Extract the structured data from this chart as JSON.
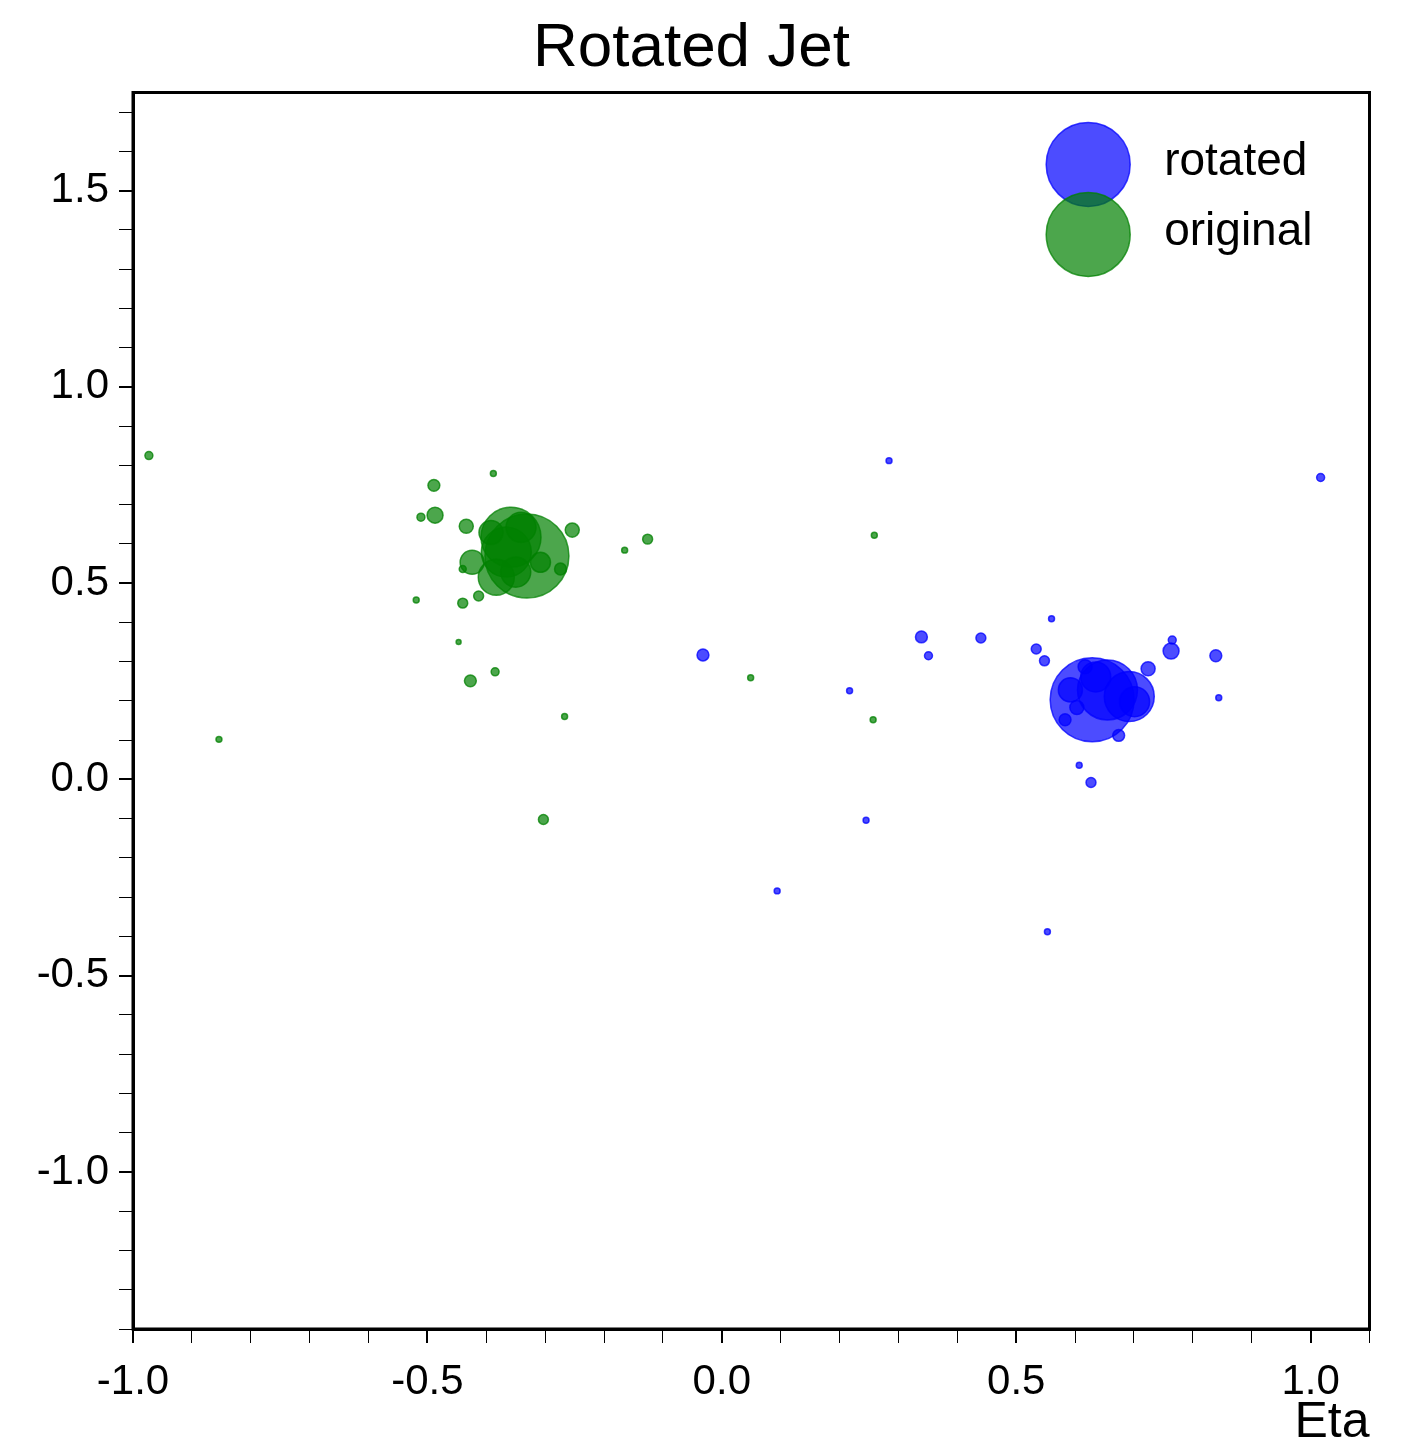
{
  "chart_data": {
    "type": "bubble",
    "title": "Rotated Jet",
    "xlabel": "Eta",
    "xlim": [
      -1.0,
      1.1
    ],
    "ylim": [
      -1.4,
      1.75
    ],
    "xticks": [
      {
        "value": -1,
        "label": "-1.0"
      },
      {
        "value": -0.9,
        "label": null
      },
      {
        "value": -0.8,
        "label": null
      },
      {
        "value": -0.7,
        "label": null
      },
      {
        "value": -0.6,
        "label": null
      },
      -0.5,
      {
        "value": -0.4,
        "label": null
      },
      {
        "value": -0.3,
        "label": null
      },
      {
        "value": -0.2,
        "label": null
      },
      {
        "value": -0.1,
        "label": null
      },
      {
        "value": 0,
        "label": "0.0"
      },
      {
        "value": 0.1,
        "label": null
      },
      {
        "value": 0.2,
        "label": null
      },
      {
        "value": 0.3,
        "label": null
      },
      {
        "value": 0.4,
        "label": null
      },
      0.5,
      {
        "value": 0.6,
        "label": null
      },
      {
        "value": 0.7,
        "label": null
      },
      {
        "value": 0.8,
        "label": null
      },
      {
        "value": 0.9,
        "label": null
      },
      {
        "value": 1,
        "label": "1.0"
      },
      {
        "value": 1.1,
        "label": null
      }
    ],
    "yticks": [
      {
        "value": -1.4,
        "label": null
      },
      {
        "value": -1.3,
        "label": null
      },
      {
        "value": -1.2,
        "label": null
      },
      {
        "value": -1.1,
        "label": null
      },
      {
        "value": -1,
        "label": "-1.0"
      },
      {
        "value": -0.9,
        "label": null
      },
      {
        "value": -0.8,
        "label": null
      },
      {
        "value": -0.7,
        "label": null
      },
      {
        "value": -0.6,
        "label": null
      },
      -0.5,
      {
        "value": -0.4,
        "label": null
      },
      {
        "value": -0.3,
        "label": null
      },
      {
        "value": -0.2,
        "label": null
      },
      {
        "value": -0.1,
        "label": null
      },
      {
        "value": 0,
        "label": "0.0"
      },
      {
        "value": 0.1,
        "label": null
      },
      {
        "value": 0.2,
        "label": null
      },
      {
        "value": 0.3,
        "label": null
      },
      {
        "value": 0.4,
        "label": null
      },
      0.5,
      {
        "value": 0.6,
        "label": null
      },
      {
        "value": 0.7,
        "label": null
      },
      {
        "value": 0.8,
        "label": null
      },
      {
        "value": 0.9,
        "label": null
      },
      {
        "value": 1,
        "label": "1.0"
      },
      {
        "value": 1.1,
        "label": null
      },
      {
        "value": 1.2,
        "label": null
      },
      {
        "value": 1.3,
        "label": null
      },
      {
        "value": 1.4,
        "label": null
      },
      1.5,
      {
        "value": 1.6,
        "label": null
      },
      {
        "value": 1.7,
        "label": null
      }
    ],
    "legend": "top right",
    "grid": false,
    "series": [
      {
        "name": "rotated",
        "color": "#0000ff",
        "x": [
          0.284,
          1.017,
          0.56,
          -0.032,
          0.339,
          0.351,
          0.44,
          0.534,
          0.548,
          0.217,
          0.245,
          0.094,
          0.553,
          0.607,
          0.627,
          0.674,
          0.724,
          0.763,
          0.765,
          0.839,
          0.844,
          0.583,
          0.603,
          0.629,
          0.655,
          0.692,
          0.617,
          0.635,
          0.701,
          0.592
        ],
        "values": [
          0.812,
          0.769,
          0.409,
          0.317,
          0.363,
          0.315,
          0.36,
          0.332,
          0.302,
          0.226,
          -0.104,
          -0.284,
          -0.388,
          0.036,
          -0.008,
          0.112,
          0.282,
          0.327,
          0.355,
          0.315,
          0.208,
          0.152,
          0.183,
          0.203,
          0.228,
          0.211,
          0.287,
          0.261,
          0.198,
          0.228
        ],
        "sizes": [
          0.005,
          0.009,
          0.005,
          0.02,
          0.02,
          0.009,
          0.014,
          0.014,
          0.014,
          0.005,
          0.005,
          0.005,
          0.005,
          0.005,
          0.014,
          0.02,
          0.028,
          0.036,
          0.009,
          0.02,
          0.005,
          0.02,
          0.028,
          1,
          0.51,
          0.354,
          0.028,
          0.128,
          0.128,
          0.082
        ]
      },
      {
        "name": "original",
        "color": "#008000",
        "x": [
          -0.973,
          -0.854,
          -0.489,
          -0.511,
          -0.487,
          -0.388,
          -0.434,
          -0.254,
          -0.126,
          -0.165,
          0.259,
          -0.44,
          -0.519,
          -0.44,
          -0.413,
          -0.447,
          -0.385,
          -0.427,
          -0.267,
          0.049,
          0.257,
          -0.303,
          -0.331,
          -0.358,
          -0.424,
          -0.308,
          -0.274,
          -0.366,
          -0.341,
          -0.383,
          -0.35,
          -0.392
        ],
        "values": [
          0.825,
          0.102,
          0.749,
          0.668,
          0.673,
          0.779,
          0.645,
          0.635,
          0.612,
          0.584,
          0.622,
          0.536,
          0.457,
          0.449,
          0.467,
          0.35,
          0.274,
          0.251,
          0.16,
          0.259,
          0.152,
          -0.102,
          0.569,
          0.617,
          0.553,
          0.553,
          0.536,
          0.579,
          0.642,
          0.515,
          0.528,
          0.629
        ],
        "sizes": [
          0.009,
          0.005,
          0.02,
          0.009,
          0.036,
          0.005,
          0.028,
          0.028,
          0.014,
          0.005,
          0.005,
          0.007,
          0.005,
          0.014,
          0.014,
          0.0035,
          0.009,
          0.02,
          0.005,
          0.005,
          0.005,
          0.014,
          1,
          0.51,
          0.082,
          0.057,
          0.02,
          0.354,
          0.128,
          0.184,
          0.128,
          0.082
        ]
      }
    ]
  }
}
